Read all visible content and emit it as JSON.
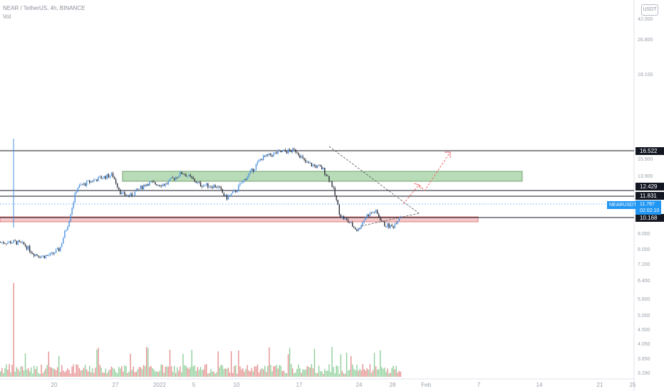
{
  "legend": {
    "title": "NEAR / TetherUS, 4h, BINANCE",
    "volume_label": "Vol"
  },
  "currency_button": "USDT",
  "symbol_label": "NEARUSDT",
  "current": {
    "price": "11.787",
    "countdown": "02:02:10"
  },
  "price_labels": [
    "16.522",
    "12.429",
    "11.831",
    "10.168"
  ],
  "colors": {
    "up": "#4a90e2",
    "down": "#2a2e39",
    "vol_up": "#e58f8f",
    "vol_down": "#8fcf9b",
    "support_zone": "#f3c9c9",
    "resistance_zone": "#b9dcb8",
    "projection": "#f26060",
    "accent": "#2196f3"
  },
  "chart_data": {
    "type": "candlestick",
    "title": "NEAR / TetherUS, 4h, BINANCE",
    "y_scale": "log",
    "ylim": [
      3.29,
      60
    ],
    "y_ticks": [
      "42.000",
      "26.800",
      "18.100",
      "15.900",
      "13.900",
      "9.000",
      "8.000",
      "7.200",
      "6.400",
      "5.600",
      "5.000",
      "4.500",
      "4.050",
      "3.650",
      "3.290"
    ],
    "x_ticks": [
      "20",
      "27",
      "2022",
      "5",
      "10",
      "17",
      "24",
      "28",
      "Feb",
      "7",
      "14",
      "21",
      "25"
    ],
    "series": [
      {
        "name": "NEARUSDT",
        "close_path": [
          [
            "2021-12-16",
            9.4
          ],
          [
            "2021-12-17",
            9.2
          ],
          [
            "2021-12-18",
            8.6
          ],
          [
            "2021-12-19",
            8.4
          ],
          [
            "2021-12-20",
            8.5
          ],
          [
            "2021-12-21",
            8.9
          ],
          [
            "2021-12-22",
            11.0
          ],
          [
            "2021-12-23",
            14.5
          ],
          [
            "2021-12-25",
            15.4
          ],
          [
            "2021-12-27",
            16.0
          ],
          [
            "2021-12-28",
            13.8
          ],
          [
            "2021-12-29",
            13.5
          ],
          [
            "2021-12-31",
            15.0
          ],
          [
            "2022-01-02",
            14.8
          ],
          [
            "2022-01-04",
            16.3
          ],
          [
            "2022-01-06",
            14.8
          ],
          [
            "2022-01-08",
            14.6
          ],
          [
            "2022-01-09",
            13.3
          ],
          [
            "2022-01-10",
            14.0
          ],
          [
            "2022-01-12",
            16.6
          ],
          [
            "2022-01-13",
            18.2
          ],
          [
            "2022-01-15",
            19.1
          ],
          [
            "2022-01-17",
            19.4
          ],
          [
            "2022-01-18",
            17.6
          ],
          [
            "2022-01-20",
            16.8
          ],
          [
            "2022-01-21",
            15.0
          ],
          [
            "2022-01-22",
            11.6
          ],
          [
            "2022-01-23",
            11.0
          ],
          [
            "2022-01-24",
            10.3
          ],
          [
            "2022-01-25",
            11.6
          ],
          [
            "2022-01-26",
            12.0
          ],
          [
            "2022-01-27",
            10.8
          ],
          [
            "2022-01-28",
            10.6
          ],
          [
            "2022-01-29",
            11.787
          ]
        ]
      }
    ],
    "levels": [
      16.522,
      12.429,
      11.831,
      10.168
    ],
    "zones": [
      {
        "name": "resistance",
        "from": 13.3,
        "to": 13.9
      },
      {
        "name": "support",
        "from": 9.95,
        "to": 10.168
      }
    ],
    "triangle": {
      "upper": [
        [
          "2022-01-21",
          16.5
        ],
        [
          "2022-01-31",
          11.2
        ]
      ],
      "lower": [
        [
          "2022-01-24",
          9.8
        ],
        [
          "2022-01-31",
          10.7
        ]
      ]
    },
    "projection": [
      [
        "2022-01-29",
        11.787
      ],
      [
        "2022-01-31",
        12.9
      ],
      [
        "2022-02-03",
        16.6
      ]
    ]
  }
}
